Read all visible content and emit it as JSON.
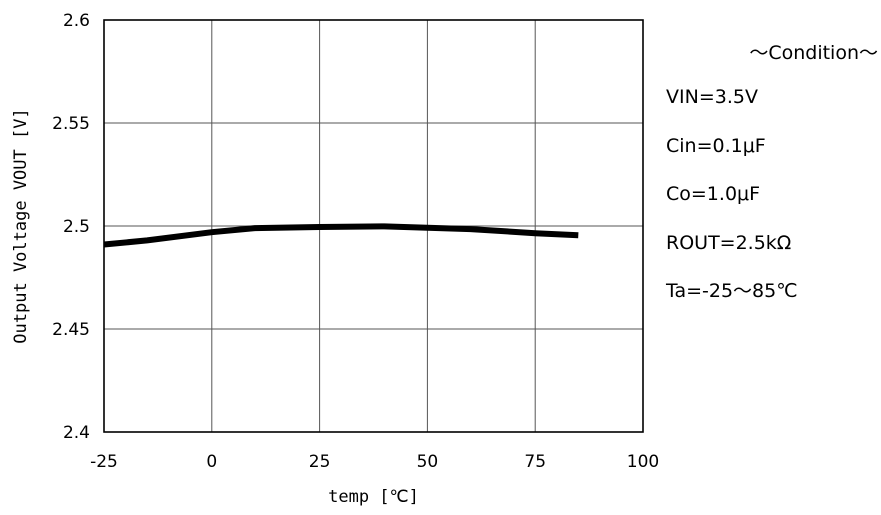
{
  "chart_data": {
    "type": "line",
    "xlabel": "temp [℃]",
    "ylabel": "Output Voltage  VOUT [V]",
    "xlim": [
      -25,
      100
    ],
    "ylim": [
      2.4,
      2.6
    ],
    "xticks": [
      -25,
      0,
      25,
      50,
      75,
      100
    ],
    "yticks": [
      2.4,
      2.45,
      2.5,
      2.55,
      2.6
    ],
    "x_tick_labels": [
      "-25",
      "0",
      "25",
      "50",
      "75",
      "100"
    ],
    "y_tick_labels": [
      "2.4",
      "2.45",
      "2.5",
      "2.55",
      "2.6"
    ],
    "grid": true,
    "series": [
      {
        "color": "#000000",
        "x": [
          -25,
          -15,
          0,
          10,
          25,
          40,
          60,
          75,
          85
        ],
        "y": [
          2.491,
          2.493,
          2.497,
          2.499,
          2.4995,
          2.4998,
          2.4985,
          2.4965,
          2.4955
        ]
      }
    ]
  },
  "conditions": {
    "title": "～Condition～",
    "items": [
      "VIN=3.5V",
      "Cin=0.1μF",
      "Co=1.0μF",
      "ROUT=2.5kΩ",
      "Ta=-25～85℃"
    ]
  }
}
